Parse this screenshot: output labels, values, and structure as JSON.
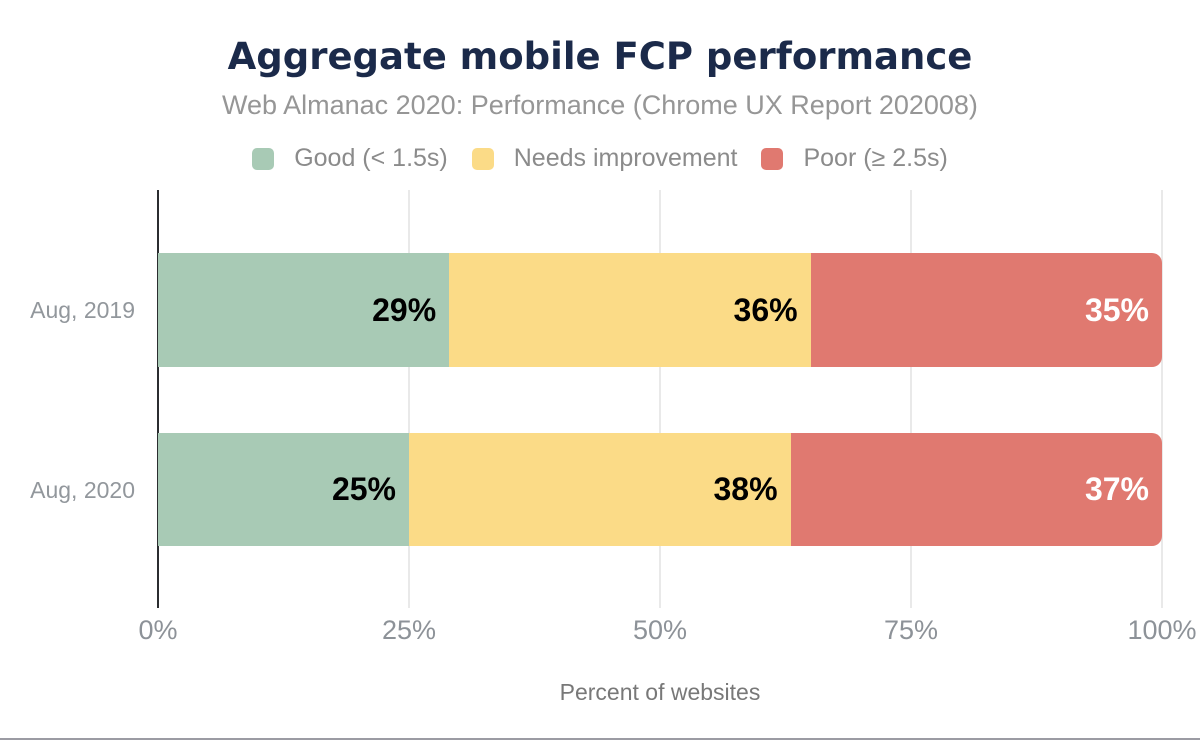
{
  "title": "Aggregate mobile FCP performance",
  "subtitle": "Web Almanac 2020: Performance (Chrome UX Report 202008)",
  "chart_data": {
    "type": "bar",
    "orientation": "horizontal",
    "stacked": true,
    "categories": [
      "Aug, 2019",
      "Aug, 2020"
    ],
    "series": [
      {
        "name": "Good (< 1.5s)",
        "color": "#a8cab5",
        "label_color": "#000000",
        "values": [
          29,
          25
        ]
      },
      {
        "name": "Needs improvement",
        "color": "#fbdb87",
        "label_color": "#000000",
        "values": [
          36,
          38
        ]
      },
      {
        "name": "Poor (≥ 2.5s)",
        "color": "#e07970",
        "label_color": "#ffffff",
        "values": [
          35,
          37
        ]
      }
    ],
    "value_suffix": "%",
    "xlabel": "Percent of websites",
    "xlim": [
      0,
      100
    ],
    "xticks": [
      0,
      25,
      50,
      75,
      100
    ],
    "xtick_labels": [
      "0%",
      "25%",
      "50%",
      "75%",
      "100%"
    ],
    "grid": true,
    "legend_position": "top"
  },
  "colors": {
    "title_text": "#1b2a4a",
    "subtitle_text": "#969696",
    "axis_line": "#2b2d30",
    "gridline": "#e9e9e9",
    "bottom_border": "#9b9ba3"
  }
}
